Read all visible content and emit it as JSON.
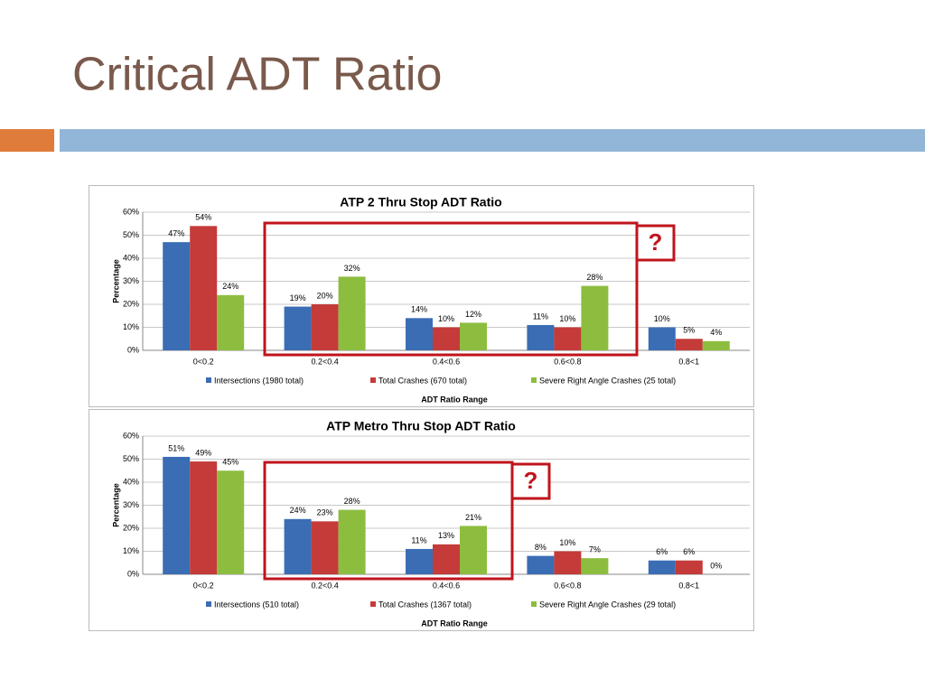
{
  "header": {
    "title": "Critical ADT Ratio"
  },
  "chart_data": [
    {
      "type": "bar",
      "title": "ATP 2 Thru Stop ADT Ratio",
      "ylabel": "Percentage",
      "xlabel": "ADT Ratio Range",
      "annotation": "?",
      "categories": [
        "0<0.2",
        "0.2<0.4",
        "0.4<0.6",
        "0.6<0.8",
        "0.8<1"
      ],
      "ylim": [
        0,
        60
      ],
      "yticks": [
        {
          "value": 0,
          "label": "0%"
        },
        {
          "value": 10,
          "label": "10%"
        },
        {
          "value": 20,
          "label": "20%"
        },
        {
          "value": 30,
          "label": "30%"
        },
        {
          "value": 40,
          "label": "40%"
        },
        {
          "value": 50,
          "label": "50%"
        },
        {
          "value": 60,
          "label": "60%"
        }
      ],
      "grid": true,
      "series": [
        {
          "name": "Intersections (1980 total)",
          "color": "#3b6db5",
          "values": [
            47,
            19,
            14,
            11,
            10
          ],
          "value_labels": [
            "47%",
            "19%",
            "14%",
            "11%",
            "10%"
          ]
        },
        {
          "name": "Total Crashes (670 total)",
          "color": "#c43b3a",
          "values": [
            54,
            20,
            10,
            10,
            5
          ],
          "value_labels": [
            "54%",
            "20%",
            "10%",
            "10%",
            "5%"
          ]
        },
        {
          "name": "Severe Right Angle Crashes (25 total)",
          "color": "#8dbd3f",
          "values": [
            24,
            32,
            12,
            28,
            4
          ],
          "value_labels": [
            "24%",
            "32%",
            "12%",
            "28%",
            "4%"
          ]
        }
      ]
    },
    {
      "type": "bar",
      "title": "ATP Metro Thru Stop ADT Ratio",
      "ylabel": "Percentage",
      "xlabel": "ADT Ratio Range",
      "annotation": "?",
      "categories": [
        "0<0.2",
        "0.2<0.4",
        "0.4<0.6",
        "0.6<0.8",
        "0.8<1"
      ],
      "ylim": [
        0,
        60
      ],
      "yticks": [
        {
          "value": 0,
          "label": "0%"
        },
        {
          "value": 10,
          "label": "10%"
        },
        {
          "value": 20,
          "label": "20%"
        },
        {
          "value": 30,
          "label": "30%"
        },
        {
          "value": 40,
          "label": "40%"
        },
        {
          "value": 50,
          "label": "50%"
        },
        {
          "value": 60,
          "label": "60%"
        }
      ],
      "grid": true,
      "series": [
        {
          "name": "Intersections (510 total)",
          "color": "#3b6db5",
          "values": [
            51,
            24,
            11,
            8,
            6
          ],
          "value_labels": [
            "51%",
            "24%",
            "11%",
            "8%",
            "6%"
          ]
        },
        {
          "name": "Total Crashes (1367 total)",
          "color": "#c43b3a",
          "values": [
            49,
            23,
            13,
            10,
            6
          ],
          "value_labels": [
            "49%",
            "23%",
            "13%",
            "10%",
            "6%"
          ]
        },
        {
          "name": "Severe Right Angle Crashes (29 total)",
          "color": "#8dbd3f",
          "values": [
            45,
            28,
            21,
            7,
            0
          ],
          "value_labels": [
            "45%",
            "28%",
            "21%",
            "7%",
            "0%"
          ]
        }
      ]
    }
  ]
}
